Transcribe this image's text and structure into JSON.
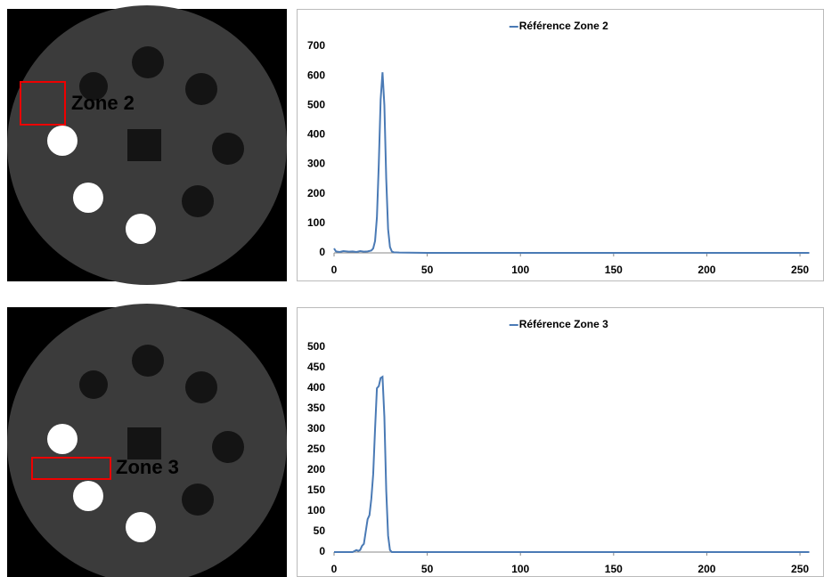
{
  "images": [
    {
      "label": "Zone 2"
    },
    {
      "label": "Zone 3"
    }
  ],
  "chart_data": [
    {
      "type": "line",
      "series": [
        {
          "name": "Référence Zone 2",
          "color": "#4a7ab5",
          "x": [
            0,
            1,
            3,
            5,
            8,
            10,
            12,
            14,
            16,
            18,
            20,
            21,
            22,
            23,
            24,
            25,
            26,
            27,
            28,
            29,
            30,
            31,
            32,
            35,
            50,
            100,
            150,
            200,
            255
          ],
          "values": [
            15,
            5,
            3,
            6,
            4,
            5,
            3,
            6,
            4,
            5,
            8,
            15,
            40,
            120,
            300,
            520,
            612,
            500,
            250,
            80,
            20,
            5,
            2,
            1,
            0,
            0,
            0,
            0,
            0
          ]
        }
      ],
      "xlim": [
        0,
        255
      ],
      "xticks": [
        0,
        50,
        100,
        150,
        200,
        250
      ],
      "ylim": [
        0,
        700
      ],
      "yticks": [
        0,
        100,
        200,
        300,
        400,
        500,
        600,
        700
      ],
      "legend": "top"
    },
    {
      "type": "line",
      "series": [
        {
          "name": "Référence Zone 3",
          "color": "#4a7ab5",
          "x": [
            0,
            10,
            12,
            13,
            14,
            15,
            16,
            17,
            18,
            19,
            20,
            21,
            22,
            23,
            24,
            25,
            26,
            27,
            28,
            29,
            30,
            31,
            32,
            40,
            100,
            150,
            200,
            255
          ],
          "values": [
            0,
            0,
            5,
            3,
            5,
            15,
            20,
            50,
            80,
            90,
            130,
            190,
            300,
            400,
            405,
            425,
            428,
            330,
            150,
            40,
            5,
            0,
            0,
            0,
            0,
            0,
            0,
            0
          ]
        }
      ],
      "xlim": [
        0,
        255
      ],
      "xticks": [
        0,
        50,
        100,
        150,
        200,
        250
      ],
      "ylim": [
        0,
        500
      ],
      "yticks": [
        0,
        50,
        100,
        150,
        200,
        250,
        300,
        350,
        400,
        450,
        500
      ],
      "legend": "top"
    }
  ]
}
